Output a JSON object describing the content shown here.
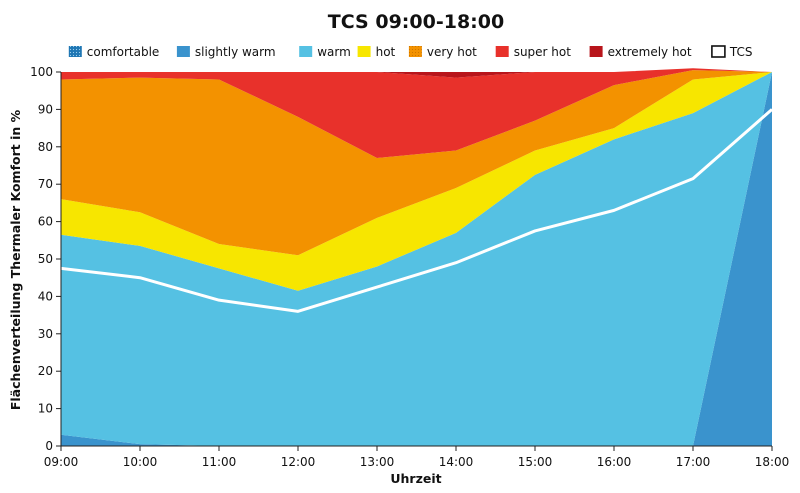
{
  "chart_data": {
    "type": "area",
    "stacked": true,
    "title": "TCS 09:00-18:00",
    "xlabel": "Uhrzeit",
    "ylabel": "Flächenverteilung Thermaler Komfort in %",
    "ylim": [
      0,
      100
    ],
    "yticks": [
      0,
      10,
      20,
      30,
      40,
      50,
      60,
      70,
      80,
      90,
      100
    ],
    "grid": false,
    "legend_position": "top",
    "categories": [
      "09:00",
      "10:00",
      "11:00",
      "12:00",
      "13:00",
      "14:00",
      "15:00",
      "16:00",
      "17:00",
      "18:00"
    ],
    "series": [
      {
        "name": "comfortable",
        "color": "#1f77b4",
        "pattern": "dotted",
        "values": [
          0,
          0,
          0,
          0,
          0,
          0,
          0,
          0,
          0,
          0
        ]
      },
      {
        "name": "slightly warm",
        "color": "#3a93cd",
        "values": [
          3,
          0.5,
          0,
          0,
          0,
          0,
          0,
          0,
          0,
          100
        ]
      },
      {
        "name": "warm",
        "color": "#55c1e3",
        "values": [
          53.5,
          53,
          47.5,
          41.5,
          48,
          57,
          72.5,
          82,
          89,
          0
        ]
      },
      {
        "name": "hot",
        "color": "#f7e600",
        "values": [
          9.5,
          9,
          6.5,
          9.5,
          13,
          12,
          6.5,
          3,
          9,
          0
        ]
      },
      {
        "name": "very hot",
        "color": "#f39200",
        "values": [
          32,
          36,
          44,
          37,
          16,
          10,
          8,
          11.5,
          2.5,
          0
        ]
      },
      {
        "name": "super hot",
        "color": "#e8312b",
        "values": [
          2,
          1.5,
          2,
          12,
          23,
          19.5,
          13,
          3.5,
          0.5,
          0
        ]
      },
      {
        "name": "extremely hot",
        "color": "#b8151b",
        "values": [
          0,
          0,
          0,
          0,
          0,
          1.5,
          0,
          0,
          0,
          0
        ]
      }
    ],
    "line": {
      "name": "TCS",
      "color": "#ffffff",
      "values": [
        47.5,
        45,
        39,
        36,
        42.5,
        49,
        57.5,
        63,
        71.5,
        90
      ]
    }
  }
}
